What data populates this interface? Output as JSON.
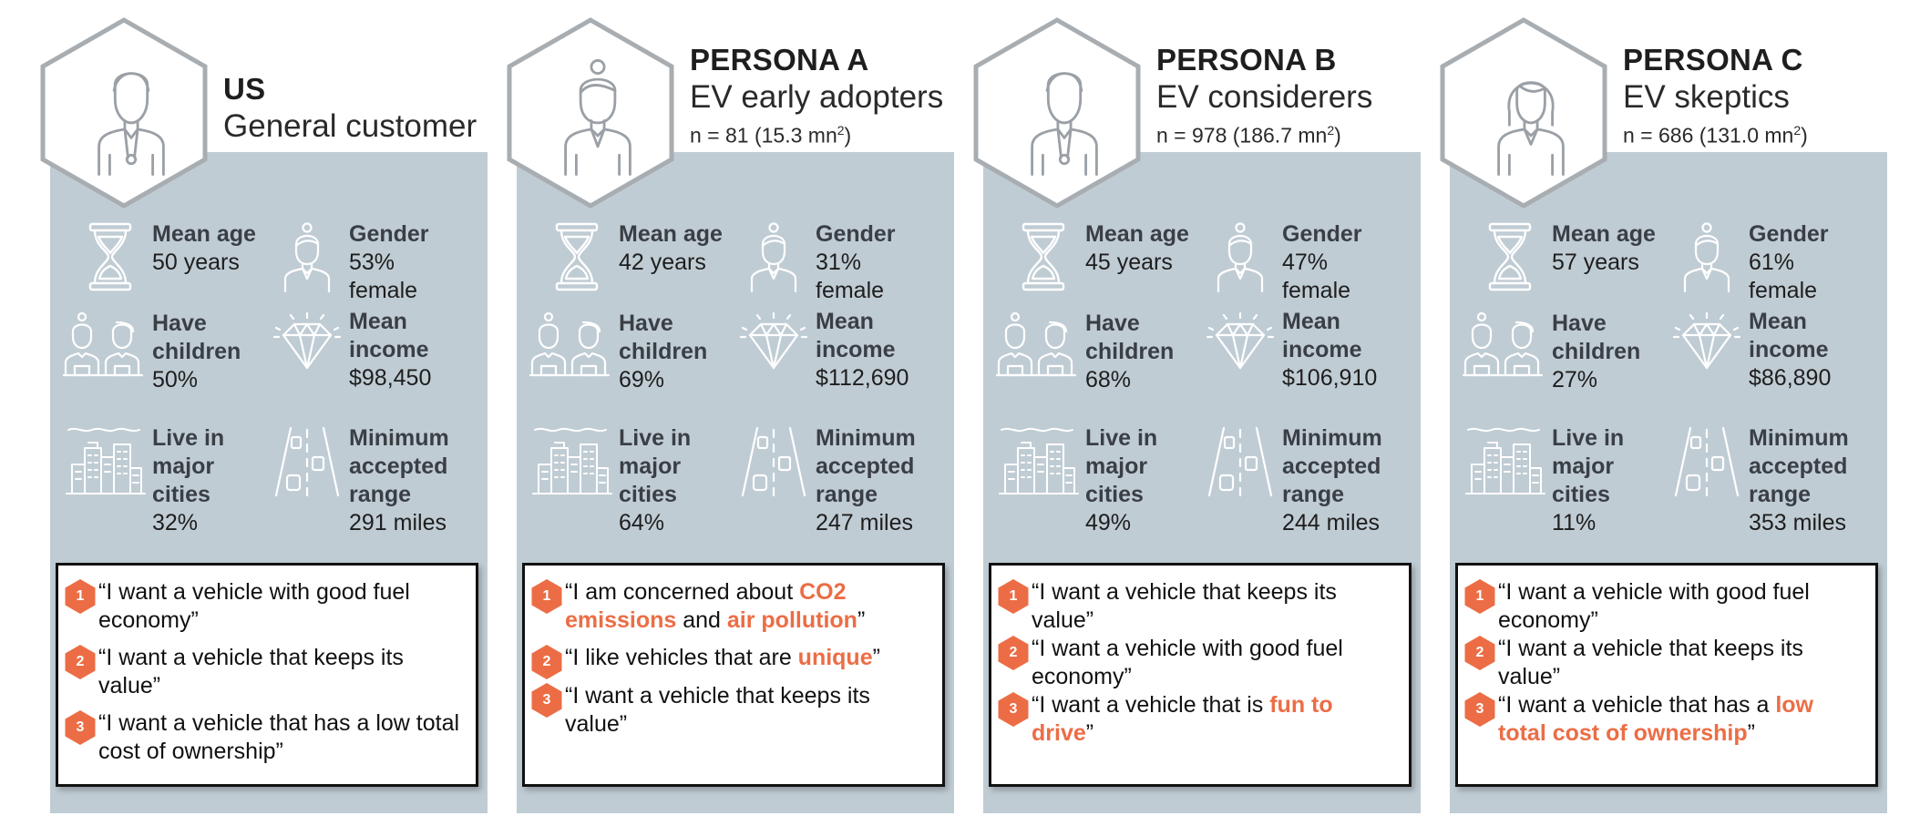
{
  "colors": {
    "panel": "#c0ccd4",
    "accent": "#ec6d45",
    "icon_stroke": "#9aa0a6",
    "icon_stroke_light": "#ffffff"
  },
  "cards": [
    {
      "kicker": "US",
      "segment": "General customer",
      "avatar_icon": "male-avatar-icon",
      "stats": {
        "age_label": "Mean age",
        "age_value": "50 years",
        "gender_label": "Gender",
        "gender_value": "53% female",
        "children_label_1": "Have",
        "children_label_2": "children",
        "children_value": "50%",
        "income_label_1": "Mean",
        "income_label_2": "income",
        "income_value": "$98,450",
        "cities_label_1": "Live in",
        "cities_label_2": "major",
        "cities_label_3": "cities",
        "cities_value": "32%",
        "range_label_1": "Minimum",
        "range_label_2": "accepted",
        "range_label_3": "range",
        "range_value": "291 miles"
      },
      "quotes": [
        {
          "num": "1",
          "parts": [
            "“I want a vehicle with good fuel economy”"
          ]
        },
        {
          "num": "2",
          "parts": [
            "“I want a vehicle that keeps its value”"
          ]
        },
        {
          "num": "3",
          "parts": [
            "“I want a vehicle that has a low total cost of ownership”"
          ]
        }
      ]
    },
    {
      "kicker": "PERSONA A",
      "segment": "EV early adopters",
      "n_text": "n = 81 (15.3 mn",
      "n_sup": "2",
      "n_close": ")",
      "avatar_icon": "female-bun-avatar-icon",
      "stats": {
        "age_label": "Mean age",
        "age_value": "42 years",
        "gender_label": "Gender",
        "gender_value": "31% female",
        "children_label_1": "Have",
        "children_label_2": "children",
        "children_value": "69%",
        "income_label_1": "Mean",
        "income_label_2": "income",
        "income_value": "$112,690",
        "cities_label_1": "Live in",
        "cities_label_2": "major",
        "cities_label_3": "cities",
        "cities_value": "64%",
        "range_label_1": "Minimum",
        "range_label_2": "accepted",
        "range_label_3": "range",
        "range_value": "247 miles"
      },
      "quotes": [
        {
          "num": "1",
          "parts": [
            "“I am concerned about ",
            "CO2 emissions",
            " and ",
            "air pollution",
            "”"
          ]
        },
        {
          "num": "2",
          "parts": [
            "“I like vehicles that are ",
            "unique",
            "”"
          ]
        },
        {
          "num": "3",
          "parts": [
            "“I want a vehicle that keeps its value”"
          ]
        }
      ]
    },
    {
      "kicker": "PERSONA B",
      "segment": "EV considerers",
      "n_text": "n = 978 (186.7 mn",
      "n_sup": "2",
      "n_close": ")",
      "avatar_icon": "male-avatar-icon",
      "stats": {
        "age_label": "Mean age",
        "age_value": "45 years",
        "gender_label": "Gender",
        "gender_value": "47% female",
        "children_label_1": "Have",
        "children_label_2": "children",
        "children_value": "68%",
        "income_label_1": "Mean",
        "income_label_2": "income",
        "income_value": "$106,910",
        "cities_label_1": "Live in",
        "cities_label_2": "major",
        "cities_label_3": "cities",
        "cities_value": "49%",
        "range_label_1": "Minimum",
        "range_label_2": "accepted",
        "range_label_3": "range",
        "range_value": "244 miles"
      },
      "quotes": [
        {
          "num": "1",
          "parts": [
            "“I want a vehicle that keeps its value”"
          ]
        },
        {
          "num": "2",
          "parts": [
            "“I want a vehicle with good fuel economy”"
          ]
        },
        {
          "num": "3",
          "parts": [
            "“I want a vehicle that is ",
            "fun to drive",
            "”"
          ]
        }
      ]
    },
    {
      "kicker": "PERSONA C",
      "segment": "EV skeptics",
      "n_text": "n = 686 (131.0 mn",
      "n_sup": "2",
      "n_close": ")",
      "avatar_icon": "female-avatar-icon",
      "stats": {
        "age_label": "Mean age",
        "age_value": "57 years",
        "gender_label": "Gender",
        "gender_value": "61% female",
        "children_label_1": "Have",
        "children_label_2": "children",
        "children_value": "27%",
        "income_label_1": "Mean",
        "income_label_2": "income",
        "income_value": "$86,890",
        "cities_label_1": "Live in",
        "cities_label_2": "major",
        "cities_label_3": "cities",
        "cities_value": "11%",
        "range_label_1": "Minimum",
        "range_label_2": "accepted",
        "range_label_3": "range",
        "range_value": "353 miles"
      },
      "quotes": [
        {
          "num": "1",
          "parts": [
            "“I want a vehicle with good fuel economy”"
          ]
        },
        {
          "num": "2",
          "parts": [
            "“I want a vehicle that keeps its value”"
          ]
        },
        {
          "num": "3",
          "parts": [
            "“I want a vehicle that has a ",
            "low total cost of ownership",
            "”"
          ]
        }
      ]
    }
  ]
}
